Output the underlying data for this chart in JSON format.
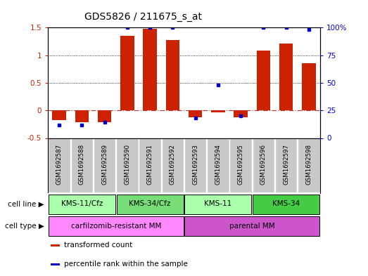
{
  "title": "GDS5826 / 211675_s_at",
  "samples": [
    "GSM1692587",
    "GSM1692588",
    "GSM1692589",
    "GSM1692590",
    "GSM1692591",
    "GSM1692592",
    "GSM1692593",
    "GSM1692594",
    "GSM1692595",
    "GSM1692596",
    "GSM1692597",
    "GSM1692598"
  ],
  "transformed_count": [
    -0.18,
    -0.22,
    -0.22,
    1.35,
    1.48,
    1.27,
    -0.13,
    -0.04,
    -0.12,
    1.08,
    1.21,
    0.85
  ],
  "percentile_rank": [
    12,
    12,
    14,
    100,
    100,
    100,
    18,
    48,
    20,
    100,
    100,
    98
  ],
  "cell_line_groups": [
    {
      "label": "KMS-11/Cfz",
      "start": 0,
      "end": 3,
      "color": "#aaffaa"
    },
    {
      "label": "KMS-34/Cfz",
      "start": 3,
      "end": 6,
      "color": "#77dd77"
    },
    {
      "label": "KMS-11",
      "start": 6,
      "end": 9,
      "color": "#aaffaa"
    },
    {
      "label": "KMS-34",
      "start": 9,
      "end": 12,
      "color": "#44cc44"
    }
  ],
  "cell_type_groups": [
    {
      "label": "carfilzomib-resistant MM",
      "start": 0,
      "end": 6,
      "color": "#ff88ff"
    },
    {
      "label": "parental MM",
      "start": 6,
      "end": 12,
      "color": "#cc55cc"
    }
  ],
  "bar_color": "#cc2200",
  "dot_color": "#0000cc",
  "ylim_left": [
    -0.5,
    1.5
  ],
  "ylim_right": [
    0,
    100
  ],
  "yticks_left": [
    -0.5,
    0.0,
    0.5,
    1.0,
    1.5
  ],
  "yticks_right": [
    0,
    25,
    50,
    75,
    100
  ],
  "ytick_labels_left": [
    "-0.5",
    "0",
    "0.5",
    "1",
    "1.5"
  ],
  "ytick_labels_right": [
    "0",
    "25",
    "50",
    "75",
    "100%"
  ],
  "hlines": [
    0.5,
    1.0
  ],
  "zero_line": 0.0,
  "background_color": "#ffffff",
  "sample_bg_color": "#c8c8c8",
  "legend_items": [
    {
      "color": "#cc2200",
      "label": "transformed count"
    },
    {
      "color": "#0000cc",
      "label": "percentile rank within the sample"
    }
  ]
}
